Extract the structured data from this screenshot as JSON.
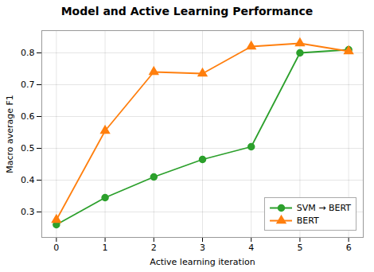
{
  "chart_data": {
    "type": "line",
    "title": "Model and Active Learning Performance",
    "xlabel": "Active learning iteration",
    "ylabel": "Macro average F1",
    "x": [
      0,
      1,
      2,
      3,
      4,
      5,
      6
    ],
    "series": [
      {
        "name": "SVM → BERT",
        "color": "#2ca02c",
        "marker": "circle",
        "values": [
          0.26,
          0.345,
          0.41,
          0.465,
          0.505,
          0.8,
          0.81
        ]
      },
      {
        "name": "BERT",
        "color": "#ff7f0e",
        "marker": "triangle",
        "values": [
          0.275,
          0.555,
          0.74,
          0.735,
          0.82,
          0.83,
          0.805
        ]
      }
    ],
    "xlim": [
      -0.3,
      6.3
    ],
    "ylim": [
      0.22,
      0.87
    ],
    "xticks": [
      0,
      1,
      2,
      3,
      4,
      5,
      6
    ],
    "yticks": [
      0.3,
      0.4,
      0.5,
      0.6,
      0.7,
      0.8
    ],
    "grid": true,
    "legend": "lower right"
  }
}
